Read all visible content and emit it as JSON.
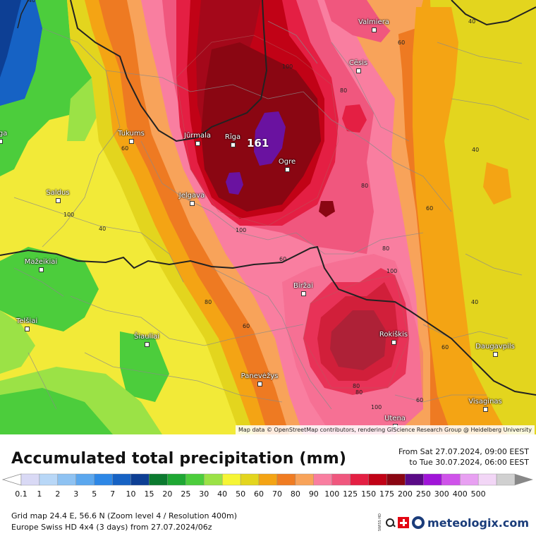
{
  "map": {
    "attribution": "Map data © OpenStreetMap contributors, rendering GIScience Research Group @ Heidelberg University",
    "max_value_label": "161",
    "cities": [
      {
        "name": "Valmiera"
      },
      {
        "name": "Cēsis"
      },
      {
        "name": "Tukums"
      },
      {
        "name": "Jūrmala"
      },
      {
        "name": "Rīga"
      },
      {
        "name": "Ogre"
      },
      {
        "name": "Saldus"
      },
      {
        "name": "Jelgava"
      },
      {
        "name": "Mažeikiai"
      },
      {
        "name": "Biržai"
      },
      {
        "name": "Telšiai"
      },
      {
        "name": "Šiauliai"
      },
      {
        "name": "Rokiškis"
      },
      {
        "name": "Daugavpils"
      },
      {
        "name": "Panevėžys"
      },
      {
        "name": "Visaginas"
      },
      {
        "name": "Utena"
      },
      {
        "name": "Liga"
      }
    ],
    "contour_labels": [
      "40",
      "60",
      "80",
      "100",
      "40",
      "60",
      "80",
      "100",
      "60",
      "80",
      "40",
      "60",
      "80",
      "100",
      "100",
      "60",
      "80",
      "40",
      "60",
      "80",
      "100",
      "40",
      "60"
    ]
  },
  "title": "Accumulated total precipitation (mm)",
  "period": {
    "from": "From Sat 27.07.2024, 09:00 EEST",
    "to": "to Tue 30.07.2024, 06:00 EEST"
  },
  "legend": {
    "values": [
      "0.1",
      "1",
      "2",
      "3",
      "5",
      "7",
      "10",
      "15",
      "20",
      "25",
      "30",
      "40",
      "50",
      "60",
      "70",
      "80",
      "90",
      "100",
      "125",
      "150",
      "175",
      "200",
      "250",
      "300",
      "400",
      "500"
    ],
    "colors": [
      "#d9d9f5",
      "#b8d7f7",
      "#8ec2f2",
      "#5ba7ee",
      "#2d87e6",
      "#1662c4",
      "#0d3f94",
      "#0b7a2f",
      "#1ea733",
      "#4ccd3c",
      "#9be246",
      "#f6f535",
      "#e3d51e",
      "#f4a414",
      "#f07c22",
      "#f8a35a",
      "#f97ea0",
      "#f0577e",
      "#e41f43",
      "#c10216",
      "#8a0612",
      "#5a0a86",
      "#a015d8",
      "#cf53ea",
      "#e8a0f2",
      "#f2d6f6",
      "#d0d0d0"
    ]
  },
  "meta": {
    "line1": "Grid map 24.4 E, 56.6 N (Zoom level 4 / Resolution 400m)",
    "line2": "Europe Swiss HD 4x4 (3 days) from  27.07.2024/06z"
  },
  "brand": {
    "name": "meteologix.com",
    "swiss_tag": "SWISS HD"
  },
  "colors": {
    "yellow": "#f2ea38",
    "green": "#54cc3a",
    "orange": "#ee7a22",
    "pink": "#ef5480",
    "darkred": "#8a0612",
    "purple": "#6a12a0"
  }
}
